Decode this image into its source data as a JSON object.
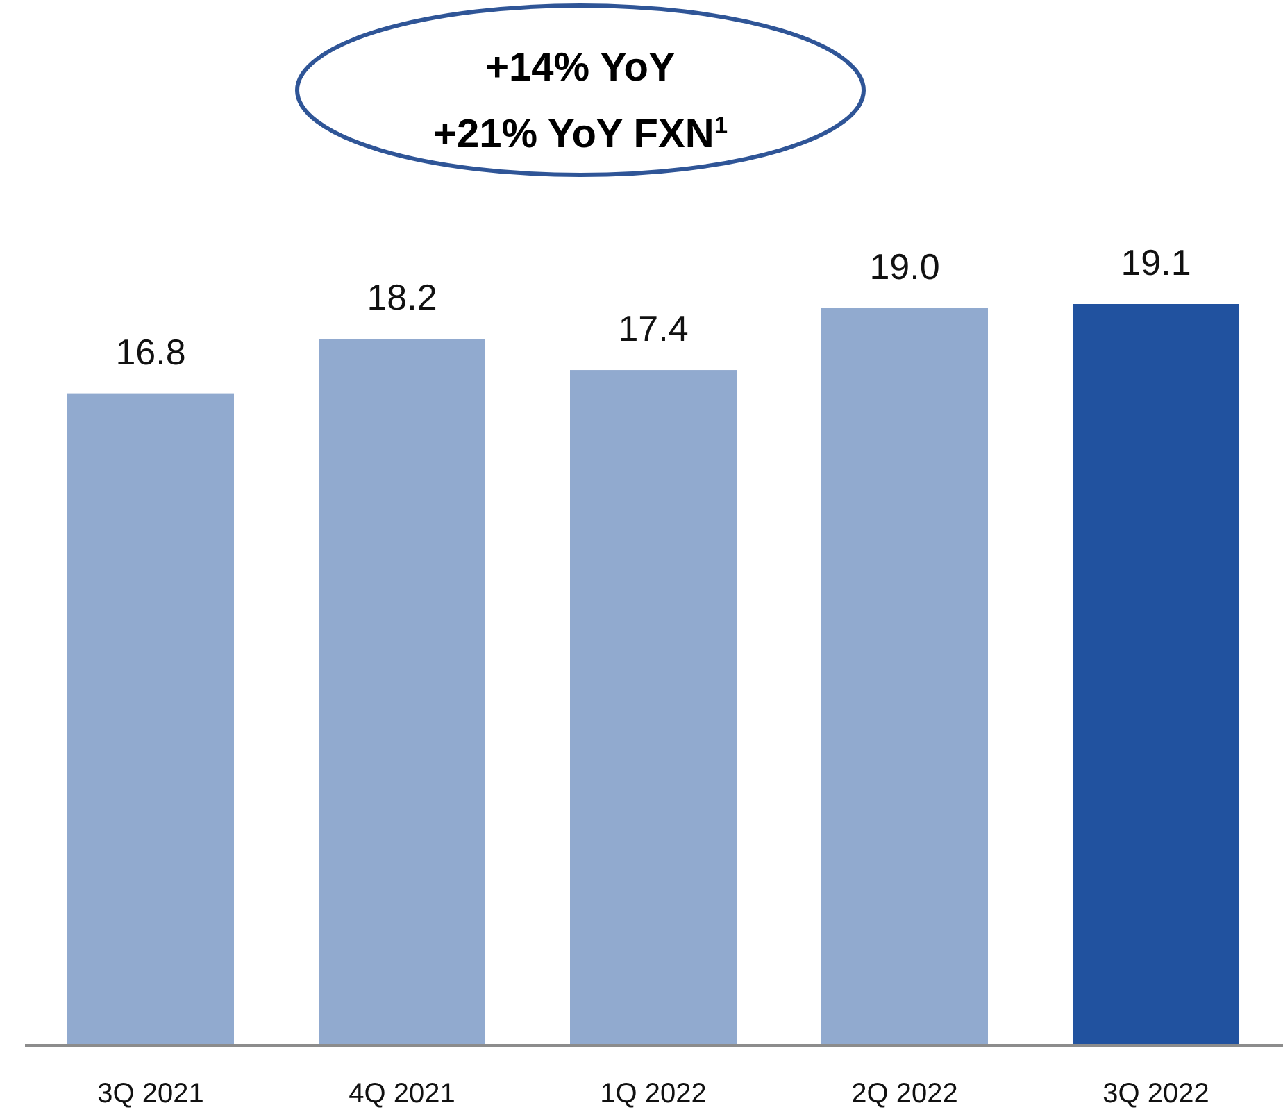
{
  "chart_data": {
    "type": "bar",
    "categories": [
      "3Q 2021",
      "4Q 2021",
      "1Q 2022",
      "2Q 2022",
      "3Q 2022"
    ],
    "values": [
      16.8,
      18.2,
      17.4,
      19.0,
      19.1
    ],
    "value_labels": [
      "16.8",
      "18.2",
      "17.4",
      "19.0",
      "19.1"
    ],
    "colors": [
      "#91aacf",
      "#91aacf",
      "#91aacf",
      "#91aacf",
      "#21529f"
    ],
    "annotations": [
      "+14% YoY",
      "+21% YoY FXN$^{1}$"
    ]
  }
}
